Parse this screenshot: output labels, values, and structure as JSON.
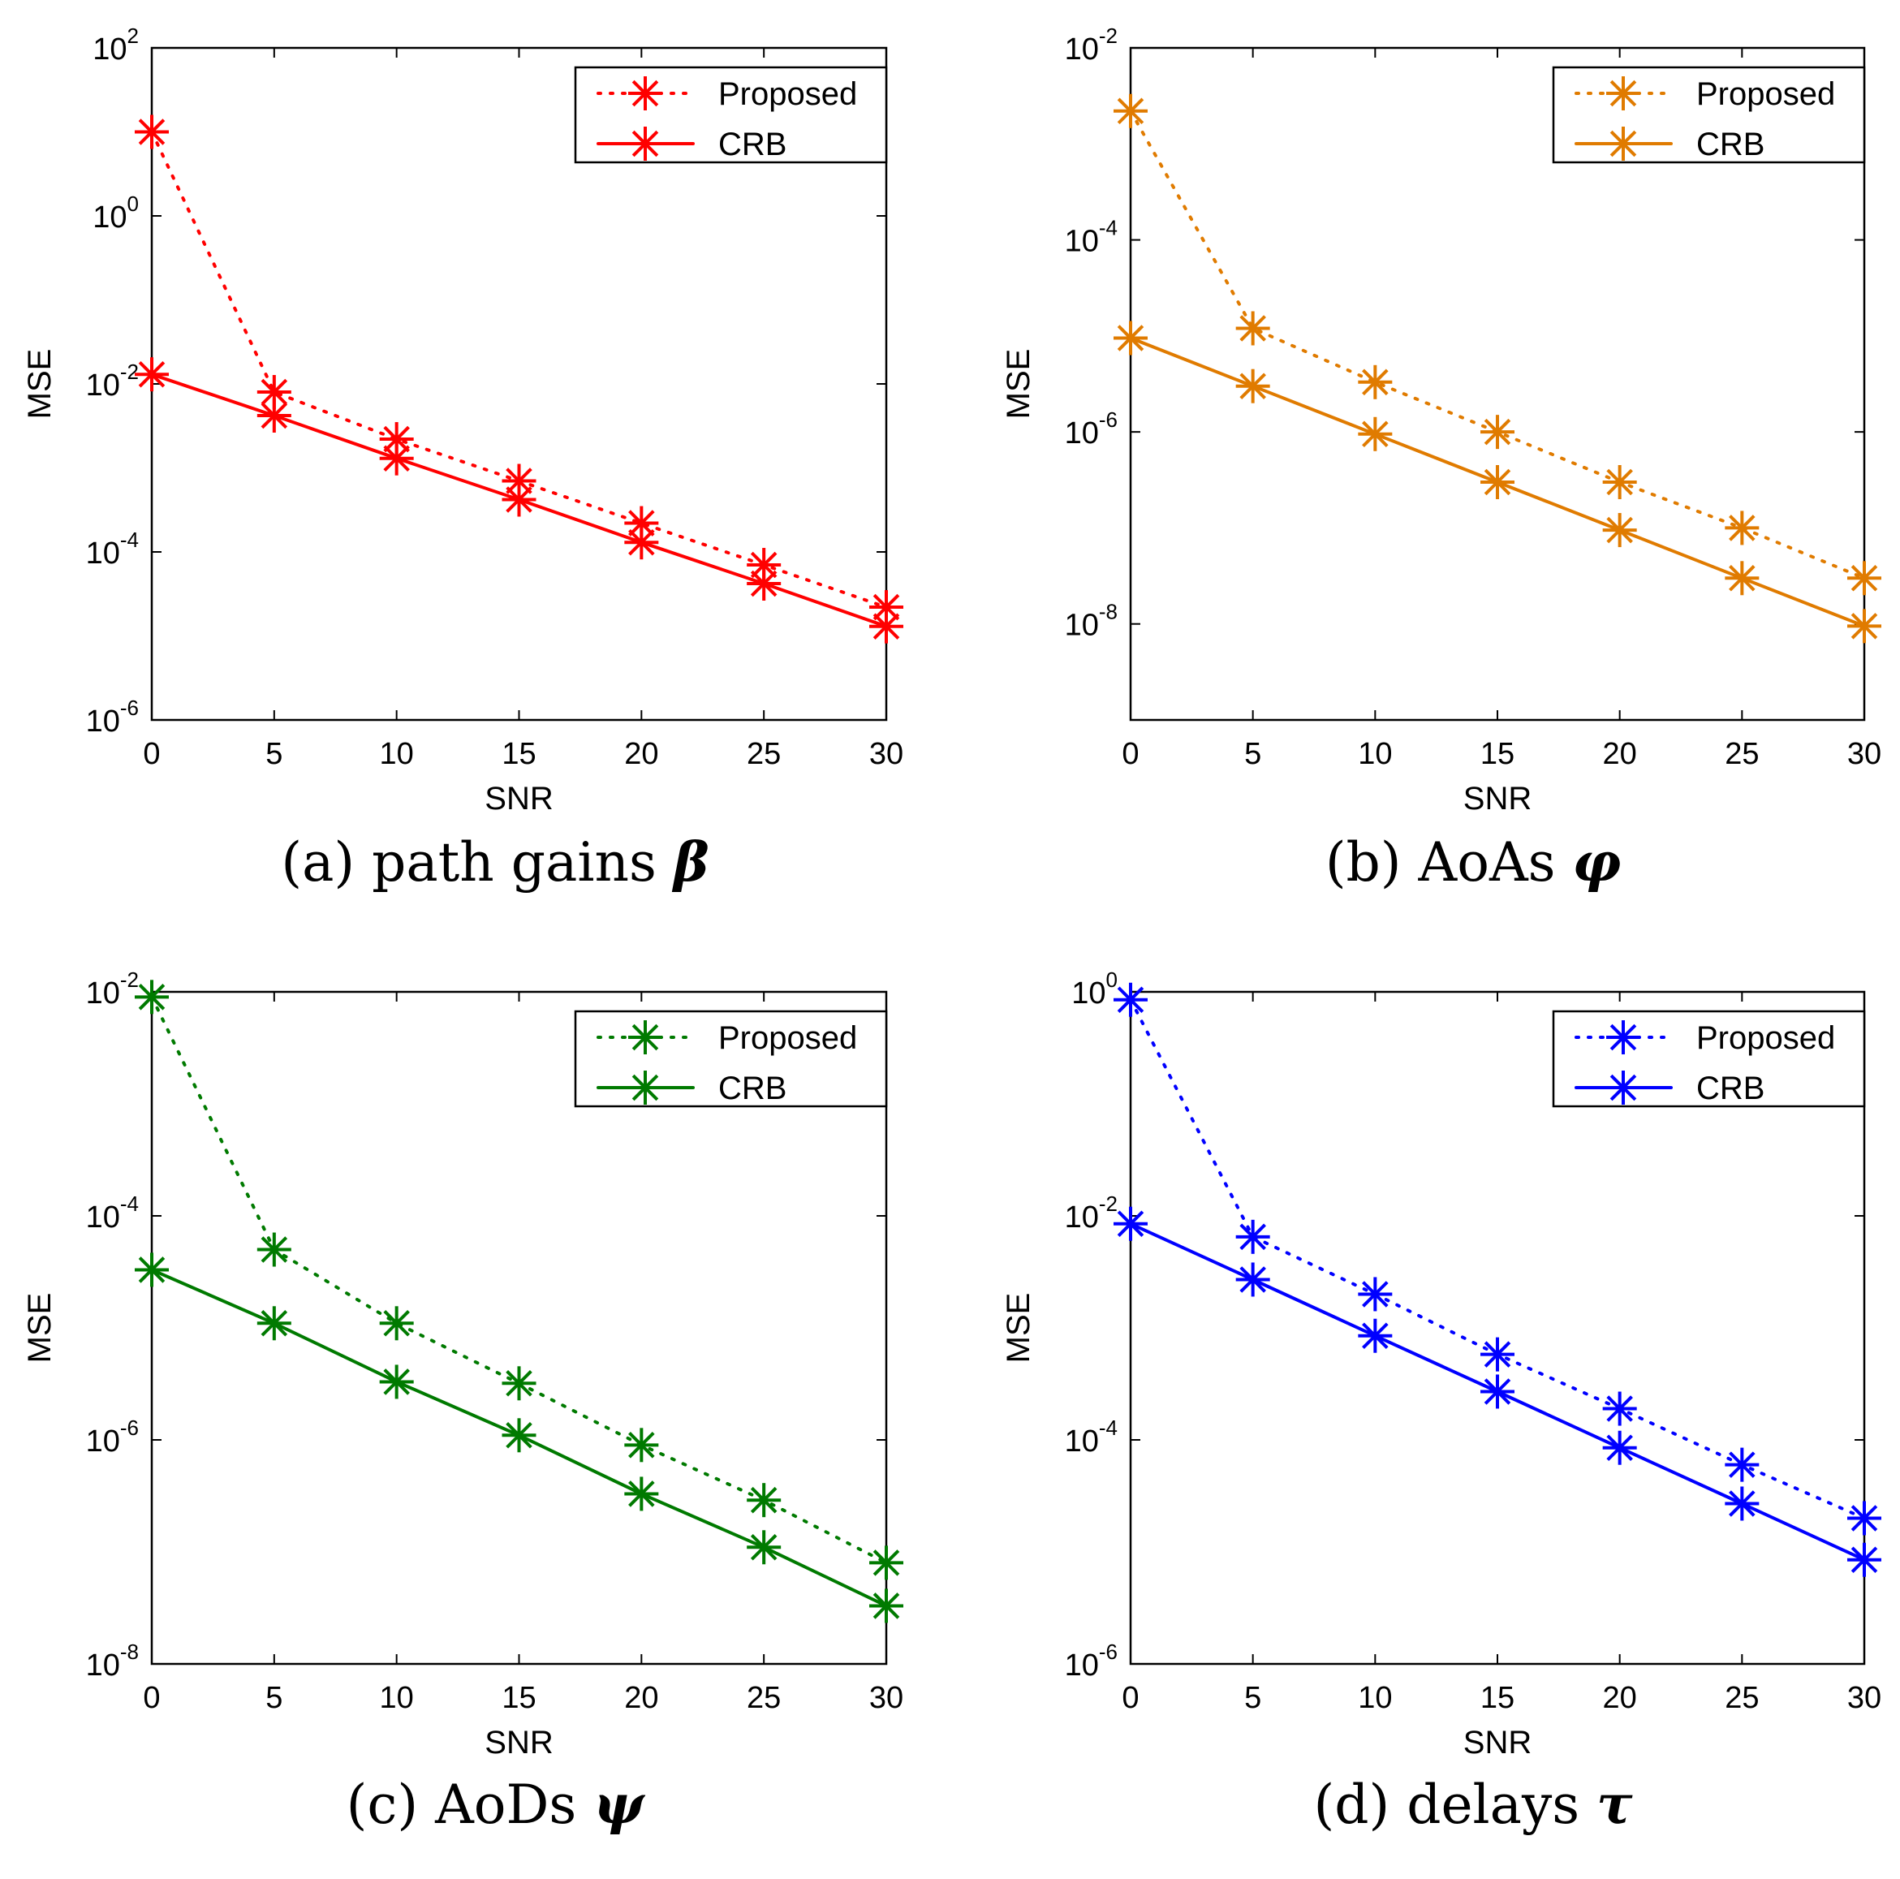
{
  "figure": {
    "panels": [
      {
        "caption_text": "(a) path gains",
        "caption_symbol": "β",
        "ylabel": "MSE",
        "xlabel": "SNR",
        "color": "#ff0000",
        "y_ticks": [
          "10^2",
          "10^0",
          "10^-2",
          "10^-4",
          "10^-6"
        ]
      },
      {
        "caption_text": "(b) AoAs",
        "caption_symbol": "φ",
        "ylabel": "MSE",
        "xlabel": "SNR",
        "color": "#e07b00",
        "y_ticks": [
          "10^-2",
          "10^-4",
          "10^-6",
          "10^-8"
        ]
      },
      {
        "caption_text": "(c) AoDs",
        "caption_symbol": "ψ",
        "ylabel": "MSE",
        "xlabel": "SNR",
        "color": "#007a00",
        "y_ticks": [
          "10^-2",
          "10^-4",
          "10^-6",
          "10^-8"
        ]
      },
      {
        "caption_text": "(d) delays",
        "caption_symbol": "τ",
        "ylabel": "MSE",
        "xlabel": "SNR",
        "color": "#0000ff",
        "y_ticks": [
          "10^0",
          "10^-2",
          "10^-4",
          "10^-6"
        ]
      }
    ]
  },
  "chart_data": [
    {
      "type": "line",
      "title": "",
      "caption": "(a) path gains β",
      "xlabel": "SNR",
      "ylabel": "MSE",
      "x": [
        0,
        5,
        10,
        15,
        20,
        25,
        30
      ],
      "xlim": [
        0,
        30
      ],
      "ylim": [
        1e-06,
        100
      ],
      "yscale": "log",
      "x_ticks": [
        0,
        5,
        10,
        15,
        20,
        25,
        30
      ],
      "y_ticks": [
        100,
        1,
        0.01,
        0.0001,
        1e-06
      ],
      "legend_position": "top-right",
      "grid": false,
      "color": "#ff0000",
      "series": [
        {
          "name": "Proposed",
          "style": "dotted",
          "marker": "asterisk",
          "values": [
            10,
            0.008,
            0.0022,
            0.0007,
            0.00022,
            7e-05,
            2.2e-05
          ]
        },
        {
          "name": "CRB",
          "style": "solid",
          "marker": "asterisk",
          "values": [
            0.013,
            0.0042,
            0.0013,
            0.00042,
            0.00013,
            4.2e-05,
            1.3e-05
          ]
        }
      ]
    },
    {
      "type": "line",
      "title": "",
      "caption": "(b) AoAs φ",
      "xlabel": "SNR",
      "ylabel": "MSE",
      "x": [
        0,
        5,
        10,
        15,
        20,
        25,
        30
      ],
      "xlim": [
        0,
        30
      ],
      "ylim": [
        1e-09,
        0.01
      ],
      "yscale": "log",
      "x_ticks": [
        0,
        5,
        10,
        15,
        20,
        25,
        30
      ],
      "y_ticks": [
        0.01,
        0.0001,
        1e-06,
        1e-08
      ],
      "legend_position": "top-right",
      "grid": false,
      "color": "#e07b00",
      "series": [
        {
          "name": "Proposed",
          "style": "dotted",
          "marker": "asterisk",
          "values": [
            0.0022,
            1.2e-05,
            3.3e-06,
            1e-06,
            3e-07,
            1e-07,
            3e-08
          ]
        },
        {
          "name": "CRB",
          "style": "solid",
          "marker": "asterisk",
          "values": [
            9.5e-06,
            3e-06,
            9.5e-07,
            3e-07,
            9.5e-08,
            3e-08,
            9.5e-09
          ]
        }
      ]
    },
    {
      "type": "line",
      "title": "",
      "caption": "(c) AoDs ψ",
      "xlabel": "SNR",
      "ylabel": "MSE",
      "x": [
        0,
        5,
        10,
        15,
        20,
        25,
        30
      ],
      "xlim": [
        0,
        30
      ],
      "ylim": [
        1e-08,
        0.01
      ],
      "yscale": "log",
      "x_ticks": [
        0,
        5,
        10,
        15,
        20,
        25,
        30
      ],
      "y_ticks": [
        0.01,
        0.0001,
        1e-06,
        1e-08
      ],
      "legend_position": "top-right",
      "grid": false,
      "color": "#007a00",
      "series": [
        {
          "name": "Proposed",
          "style": "dotted",
          "marker": "asterisk",
          "values": [
            0.009,
            5e-05,
            1.1e-05,
            3.2e-06,
            9e-07,
            2.9e-07,
            8e-08
          ]
        },
        {
          "name": "CRB",
          "style": "solid",
          "marker": "asterisk",
          "values": [
            3.3e-05,
            1.1e-05,
            3.3e-06,
            1.1e-06,
            3.3e-07,
            1.1e-07,
            3.3e-08
          ]
        }
      ]
    },
    {
      "type": "line",
      "title": "",
      "caption": "(d) delays τ",
      "xlabel": "SNR",
      "ylabel": "MSE",
      "x": [
        0,
        5,
        10,
        15,
        20,
        25,
        30
      ],
      "xlim": [
        0,
        30
      ],
      "ylim": [
        1e-06,
        1
      ],
      "yscale": "log",
      "x_ticks": [
        0,
        5,
        10,
        15,
        20,
        25,
        30
      ],
      "y_ticks": [
        1,
        0.01,
        0.0001,
        1e-06
      ],
      "legend_position": "top-right",
      "grid": false,
      "color": "#0000ff",
      "series": [
        {
          "name": "Proposed",
          "style": "dotted",
          "marker": "asterisk",
          "values": [
            0.85,
            0.0065,
            0.002,
            0.00058,
            0.00019,
            6e-05,
            2e-05
          ]
        },
        {
          "name": "CRB",
          "style": "solid",
          "marker": "asterisk",
          "values": [
            0.0085,
            0.0027,
            0.00085,
            0.00027,
            8.5e-05,
            2.7e-05,
            8.5e-06
          ]
        }
      ]
    }
  ]
}
